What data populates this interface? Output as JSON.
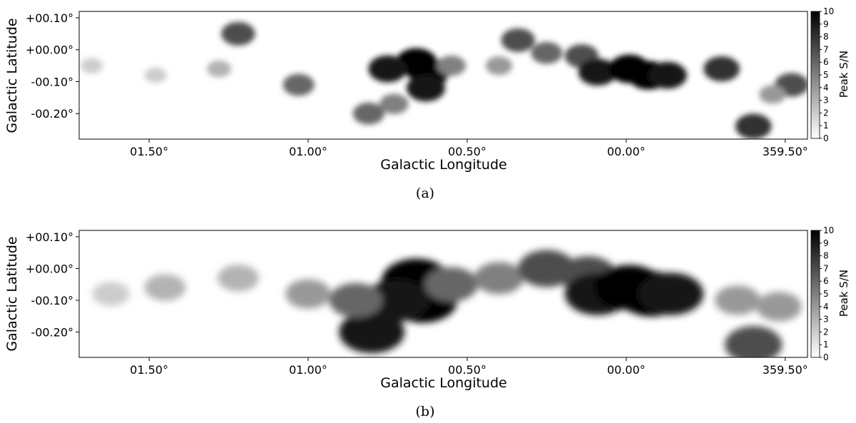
{
  "chart_data": [
    {
      "type": "heatmap",
      "panel_label": "(a)",
      "xlabel": "Galactic Longitude",
      "ylabel": "Galactic Latitude",
      "x_ticks": [
        "01.50°",
        "01.00°",
        "00.50°",
        "00.00°",
        "359.50°"
      ],
      "x_tick_values": [
        1.5,
        1.0,
        0.5,
        0.0,
        -0.5
      ],
      "y_ticks": [
        "+00.10°",
        "+00.00°",
        "-00.10°",
        "-00.20°"
      ],
      "y_tick_values": [
        0.1,
        0.0,
        -0.1,
        -0.2
      ],
      "xlim": [
        1.72,
        -0.57
      ],
      "ylim": [
        -0.28,
        0.12
      ],
      "colorbar": {
        "label": "Peak S/N",
        "ticks": [
          "0",
          "1",
          "2",
          "3",
          "4",
          "5",
          "6",
          "7",
          "8",
          "9",
          "10"
        ],
        "range": [
          0,
          10
        ],
        "colormap": "gray_r"
      },
      "emission": [
        {
          "l": 0.66,
          "b": -0.04,
          "peak_sn": 10
        },
        {
          "l": 0.62,
          "b": -0.07,
          "peak_sn": 10
        },
        {
          "l": 0.63,
          "b": -0.12,
          "peak_sn": 9
        },
        {
          "l": 0.75,
          "b": -0.06,
          "peak_sn": 9
        },
        {
          "l": 0.81,
          "b": -0.2,
          "peak_sn": 6
        },
        {
          "l": 0.73,
          "b": -0.17,
          "peak_sn": 5
        },
        {
          "l": 0.55,
          "b": -0.05,
          "peak_sn": 5
        },
        {
          "l": 0.4,
          "b": -0.05,
          "peak_sn": 4
        },
        {
          "l": 0.34,
          "b": 0.03,
          "peak_sn": 7
        },
        {
          "l": 0.25,
          "b": -0.01,
          "peak_sn": 6
        },
        {
          "l": 0.14,
          "b": -0.02,
          "peak_sn": 7
        },
        {
          "l": 0.09,
          "b": -0.07,
          "peak_sn": 9
        },
        {
          "l": -0.01,
          "b": -0.06,
          "peak_sn": 10
        },
        {
          "l": -0.07,
          "b": -0.08,
          "peak_sn": 10
        },
        {
          "l": -0.13,
          "b": -0.08,
          "peak_sn": 9
        },
        {
          "l": -0.3,
          "b": -0.06,
          "peak_sn": 8
        },
        {
          "l": -0.52,
          "b": -0.11,
          "peak_sn": 7
        },
        {
          "l": -0.46,
          "b": -0.14,
          "peak_sn": 4
        },
        {
          "l": -0.4,
          "b": -0.24,
          "peak_sn": 8
        },
        {
          "l": 1.03,
          "b": -0.11,
          "peak_sn": 6
        },
        {
          "l": 1.22,
          "b": 0.05,
          "peak_sn": 7
        },
        {
          "l": 1.28,
          "b": -0.06,
          "peak_sn": 3
        },
        {
          "l": 1.48,
          "b": -0.08,
          "peak_sn": 2
        },
        {
          "l": 1.68,
          "b": -0.05,
          "peak_sn": 2
        }
      ]
    },
    {
      "type": "heatmap",
      "panel_label": "(b)",
      "xlabel": "Galactic Longitude",
      "ylabel": "Galactic Latitude",
      "x_ticks": [
        "01.50°",
        "01.00°",
        "00.50°",
        "00.00°",
        "359.50°"
      ],
      "x_tick_values": [
        1.5,
        1.0,
        0.5,
        0.0,
        -0.5
      ],
      "y_ticks": [
        "+00.10°",
        "+00.00°",
        "-00.10°",
        "-00.20°"
      ],
      "y_tick_values": [
        0.1,
        0.0,
        -0.1,
        -0.2
      ],
      "xlim": [
        1.72,
        -0.57
      ],
      "ylim": [
        -0.28,
        0.12
      ],
      "colorbar": {
        "label": "Peak S/N",
        "ticks": [
          "0",
          "1",
          "2",
          "3",
          "4",
          "5",
          "6",
          "7",
          "8",
          "9",
          "10"
        ],
        "range": [
          0,
          10
        ],
        "colormap": "gray_r"
      },
      "emission": [
        {
          "l": 0.66,
          "b": -0.04,
          "peak_sn": 10
        },
        {
          "l": 0.64,
          "b": -0.1,
          "peak_sn": 10
        },
        {
          "l": 0.72,
          "b": -0.1,
          "peak_sn": 9
        },
        {
          "l": 0.8,
          "b": -0.2,
          "peak_sn": 9
        },
        {
          "l": 0.85,
          "b": -0.1,
          "peak_sn": 6
        },
        {
          "l": 0.55,
          "b": -0.05,
          "peak_sn": 6
        },
        {
          "l": 0.4,
          "b": -0.03,
          "peak_sn": 5
        },
        {
          "l": 0.25,
          "b": 0.0,
          "peak_sn": 7
        },
        {
          "l": 0.12,
          "b": -0.02,
          "peak_sn": 7
        },
        {
          "l": 0.09,
          "b": -0.08,
          "peak_sn": 9
        },
        {
          "l": -0.01,
          "b": -0.06,
          "peak_sn": 10
        },
        {
          "l": -0.08,
          "b": -0.08,
          "peak_sn": 10
        },
        {
          "l": -0.14,
          "b": -0.08,
          "peak_sn": 9
        },
        {
          "l": -0.35,
          "b": -0.1,
          "peak_sn": 4
        },
        {
          "l": -0.48,
          "b": -0.12,
          "peak_sn": 4
        },
        {
          "l": -0.4,
          "b": -0.24,
          "peak_sn": 7
        },
        {
          "l": 1.0,
          "b": -0.08,
          "peak_sn": 4
        },
        {
          "l": 1.22,
          "b": -0.03,
          "peak_sn": 3
        },
        {
          "l": 1.45,
          "b": -0.06,
          "peak_sn": 3
        },
        {
          "l": 1.62,
          "b": -0.08,
          "peak_sn": 2
        }
      ]
    }
  ]
}
